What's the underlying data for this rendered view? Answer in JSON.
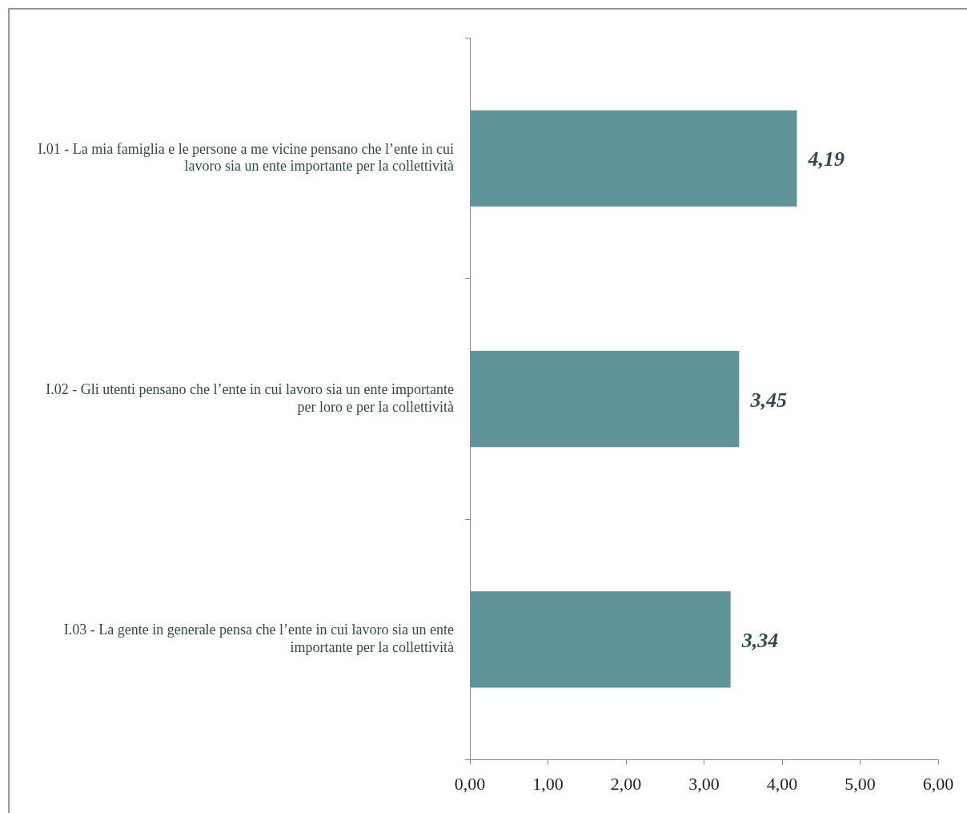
{
  "chart_data": {
    "type": "bar",
    "orientation": "horizontal",
    "categories": [
      "I.01 - La mia famiglia e le persone a me vicine pensano che l’ente in cui lavoro sia un ente importante per la collettività",
      "I.02 - Gli utenti pensano che l’ente in cui lavoro sia un ente importante per loro e per la collettività",
      "I.03 - La gente in generale pensa che l’ente in cui lavoro sia un ente importante per la collettività"
    ],
    "values": [
      4.19,
      3.45,
      3.34
    ],
    "color": "#5f9499",
    "value_labels": [
      "4,19",
      "3,45",
      "3,34"
    ],
    "xlim": [
      0,
      6
    ],
    "xticks": [
      {
        "value": 0,
        "label": "0,00"
      },
      {
        "value": 1,
        "label": "1,00"
      },
      {
        "value": 2,
        "label": "2,00"
      },
      {
        "value": 3,
        "label": "3,00"
      },
      {
        "value": 4,
        "label": "4,00"
      },
      {
        "value": 5,
        "label": "5,00"
      },
      {
        "value": 6,
        "label": "6,00"
      }
    ],
    "grid": false,
    "legend": false
  }
}
